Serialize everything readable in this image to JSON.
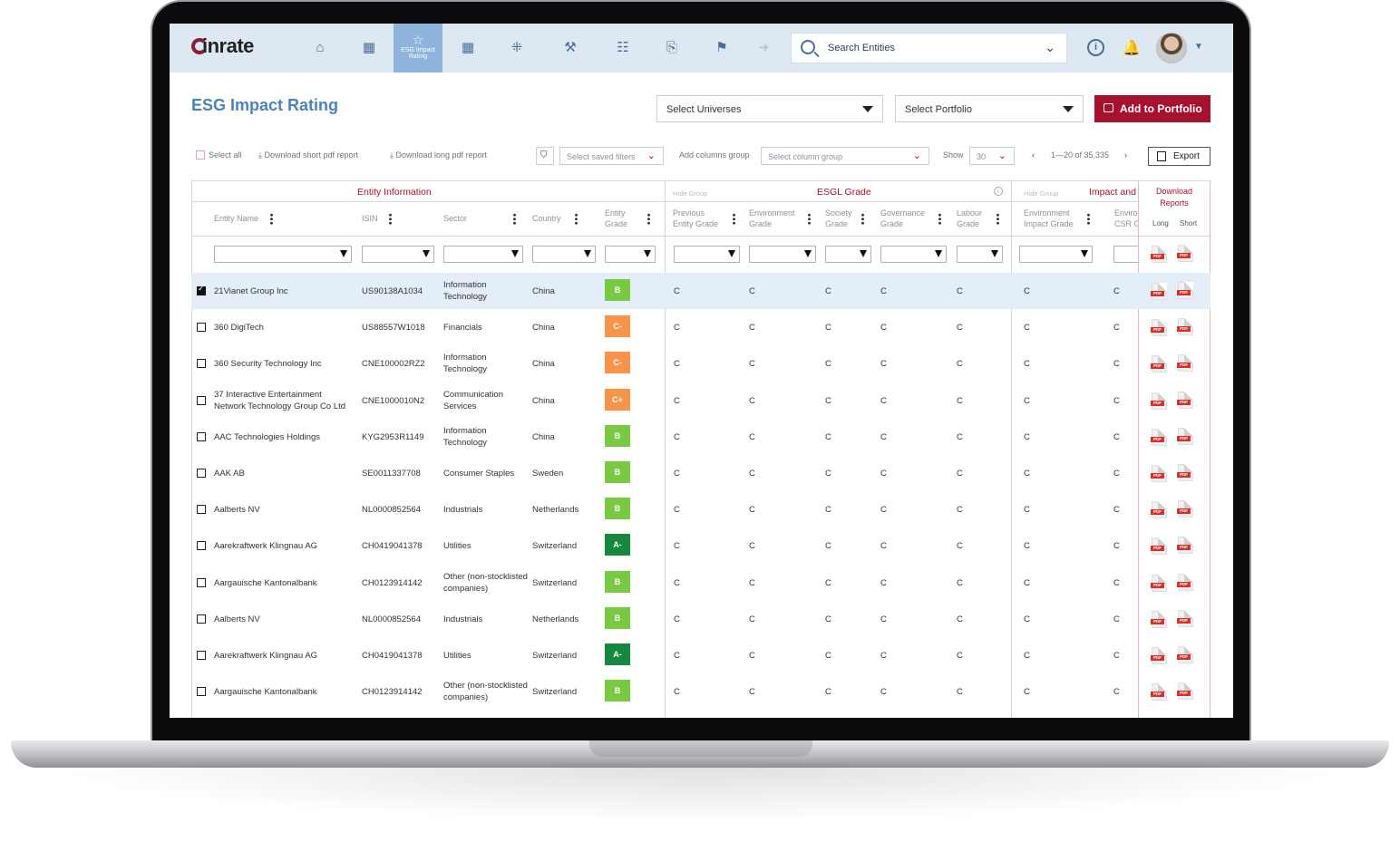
{
  "nav": {
    "logo": "inrate",
    "active_tab": "ESG Impact Rating",
    "search_placeholder": "Search Entities",
    "icons": [
      "home-icon",
      "grid-icon",
      "star-icon",
      "grid-icon",
      "network-icon",
      "gavel-icon",
      "checklist-icon",
      "document-search-icon",
      "flag-icon",
      "arrow-circle-icon"
    ]
  },
  "page": {
    "title": "ESG Impact Rating",
    "select_universes": "Select Universes",
    "select_portfolio": "Select Portfolio",
    "add_to_portfolio": "Add to Portfolio"
  },
  "toolbar": {
    "select_all": "Select all",
    "download_short": "Download short pdf report",
    "download_long": "Download long pdf report",
    "saved_filters": "Select saved filters",
    "add_columns_label": "Add columns group",
    "column_group": "Select column group",
    "show_label": "Show",
    "show_value": "30",
    "pagination": "1—20 of 35,335",
    "export": "Export"
  },
  "groups": {
    "entity_info": "Entity Information",
    "esgl": "ESGL Grade",
    "impact": "Impact and",
    "hide_group": "Hide Group",
    "download_reports": "Download Reports",
    "long": "Long",
    "short": "Short"
  },
  "columns": {
    "entity_name": "Entity Name",
    "isin": "ISIN",
    "sector": "Sector",
    "country": "Country",
    "entity_grade_1": "Entity",
    "entity_grade_2": "Grade",
    "prev_1": "Previous",
    "prev_2": "Entity Grade",
    "env_1": "Environment",
    "env_2": "Grade",
    "soc_1": "Society",
    "soc_2": "Grade",
    "gov_1": "Governance",
    "gov_2": "Grade",
    "lab_1": "Labour",
    "lab_2": "Grade",
    "eimp_1": "Environment",
    "eimp_2": "Impact Grade",
    "csr_1": "Enviro",
    "csr_2": "CSR G"
  },
  "colors": {
    "B": "#7ac943",
    "C-": "#f7944a",
    "C+": "#f7944a",
    "A-": "#14893e"
  },
  "rows": [
    {
      "name1": "21Vianet Group Inc",
      "name2": "",
      "isin": "US90138A1034",
      "sector1": "Information",
      "sector2": "Technology",
      "country": "China",
      "grade": "B",
      "checked": true,
      "c": "C"
    },
    {
      "name1": "360 DigiTech",
      "name2": "",
      "isin": "US88557W1018",
      "sector1": "Financials",
      "sector2": "",
      "country": "China",
      "grade": "C-",
      "checked": false,
      "c": "C"
    },
    {
      "name1": "360 Security Technology Inc",
      "name2": "",
      "isin": "CNE100002RZ2",
      "sector1": "Information",
      "sector2": "Technology",
      "country": "China",
      "grade": "C-",
      "checked": false,
      "c": "C"
    },
    {
      "name1": "37 Interactive Entertainment",
      "name2": "Network Technology Group Co Ltd",
      "isin": "CNE1000010N2",
      "sector1": "Communication",
      "sector2": "Services",
      "country": "China",
      "grade": "C+",
      "checked": false,
      "c": "C"
    },
    {
      "name1": "AAC Technologies Holdings",
      "name2": "",
      "isin": "KYG2953R1149",
      "sector1": "Information",
      "sector2": "Technology",
      "country": "China",
      "grade": "B",
      "checked": false,
      "c": "C"
    },
    {
      "name1": "AAK AB",
      "name2": "",
      "isin": "SE0011337708",
      "sector1": "Consumer Staples",
      "sector2": "",
      "country": "Sweden",
      "grade": "B",
      "checked": false,
      "c": "C"
    },
    {
      "name1": "Aalberts NV",
      "name2": "",
      "isin": "NL0000852564",
      "sector1": "Industrials",
      "sector2": "",
      "country": "Netherlands",
      "grade": "B",
      "checked": false,
      "c": "C"
    },
    {
      "name1": "Aarekraftwerk Klingnau AG",
      "name2": "",
      "isin": "CH0419041378",
      "sector1": "Utilities",
      "sector2": "",
      "country": "Switzerland",
      "grade": "A-",
      "checked": false,
      "c": "C"
    },
    {
      "name1": "Aargauische Kantonalbank",
      "name2": "",
      "isin": "CH0123914142",
      "sector1": "Other (non-stocklisted",
      "sector2": "companies)",
      "country": "Switzerland",
      "grade": "B",
      "checked": false,
      "c": "C"
    },
    {
      "name1": "Aalberts NV",
      "name2": "",
      "isin": "NL0000852564",
      "sector1": "Industrials",
      "sector2": "",
      "country": "Netherlands",
      "grade": "B",
      "checked": false,
      "c": "C"
    },
    {
      "name1": "Aarekraftwerk Klingnau AG",
      "name2": "",
      "isin": "CH0419041378",
      "sector1": "Utilities",
      "sector2": "",
      "country": "Switzerland",
      "grade": "A-",
      "checked": false,
      "c": "C"
    },
    {
      "name1": "Aargauische Kantonalbank",
      "name2": "",
      "isin": "CH0123914142",
      "sector1": "Other (non-stocklisted",
      "sector2": "companies)",
      "country": "Switzerland",
      "grade": "B",
      "checked": false,
      "c": "C"
    }
  ],
  "pdf_label": "PDF"
}
